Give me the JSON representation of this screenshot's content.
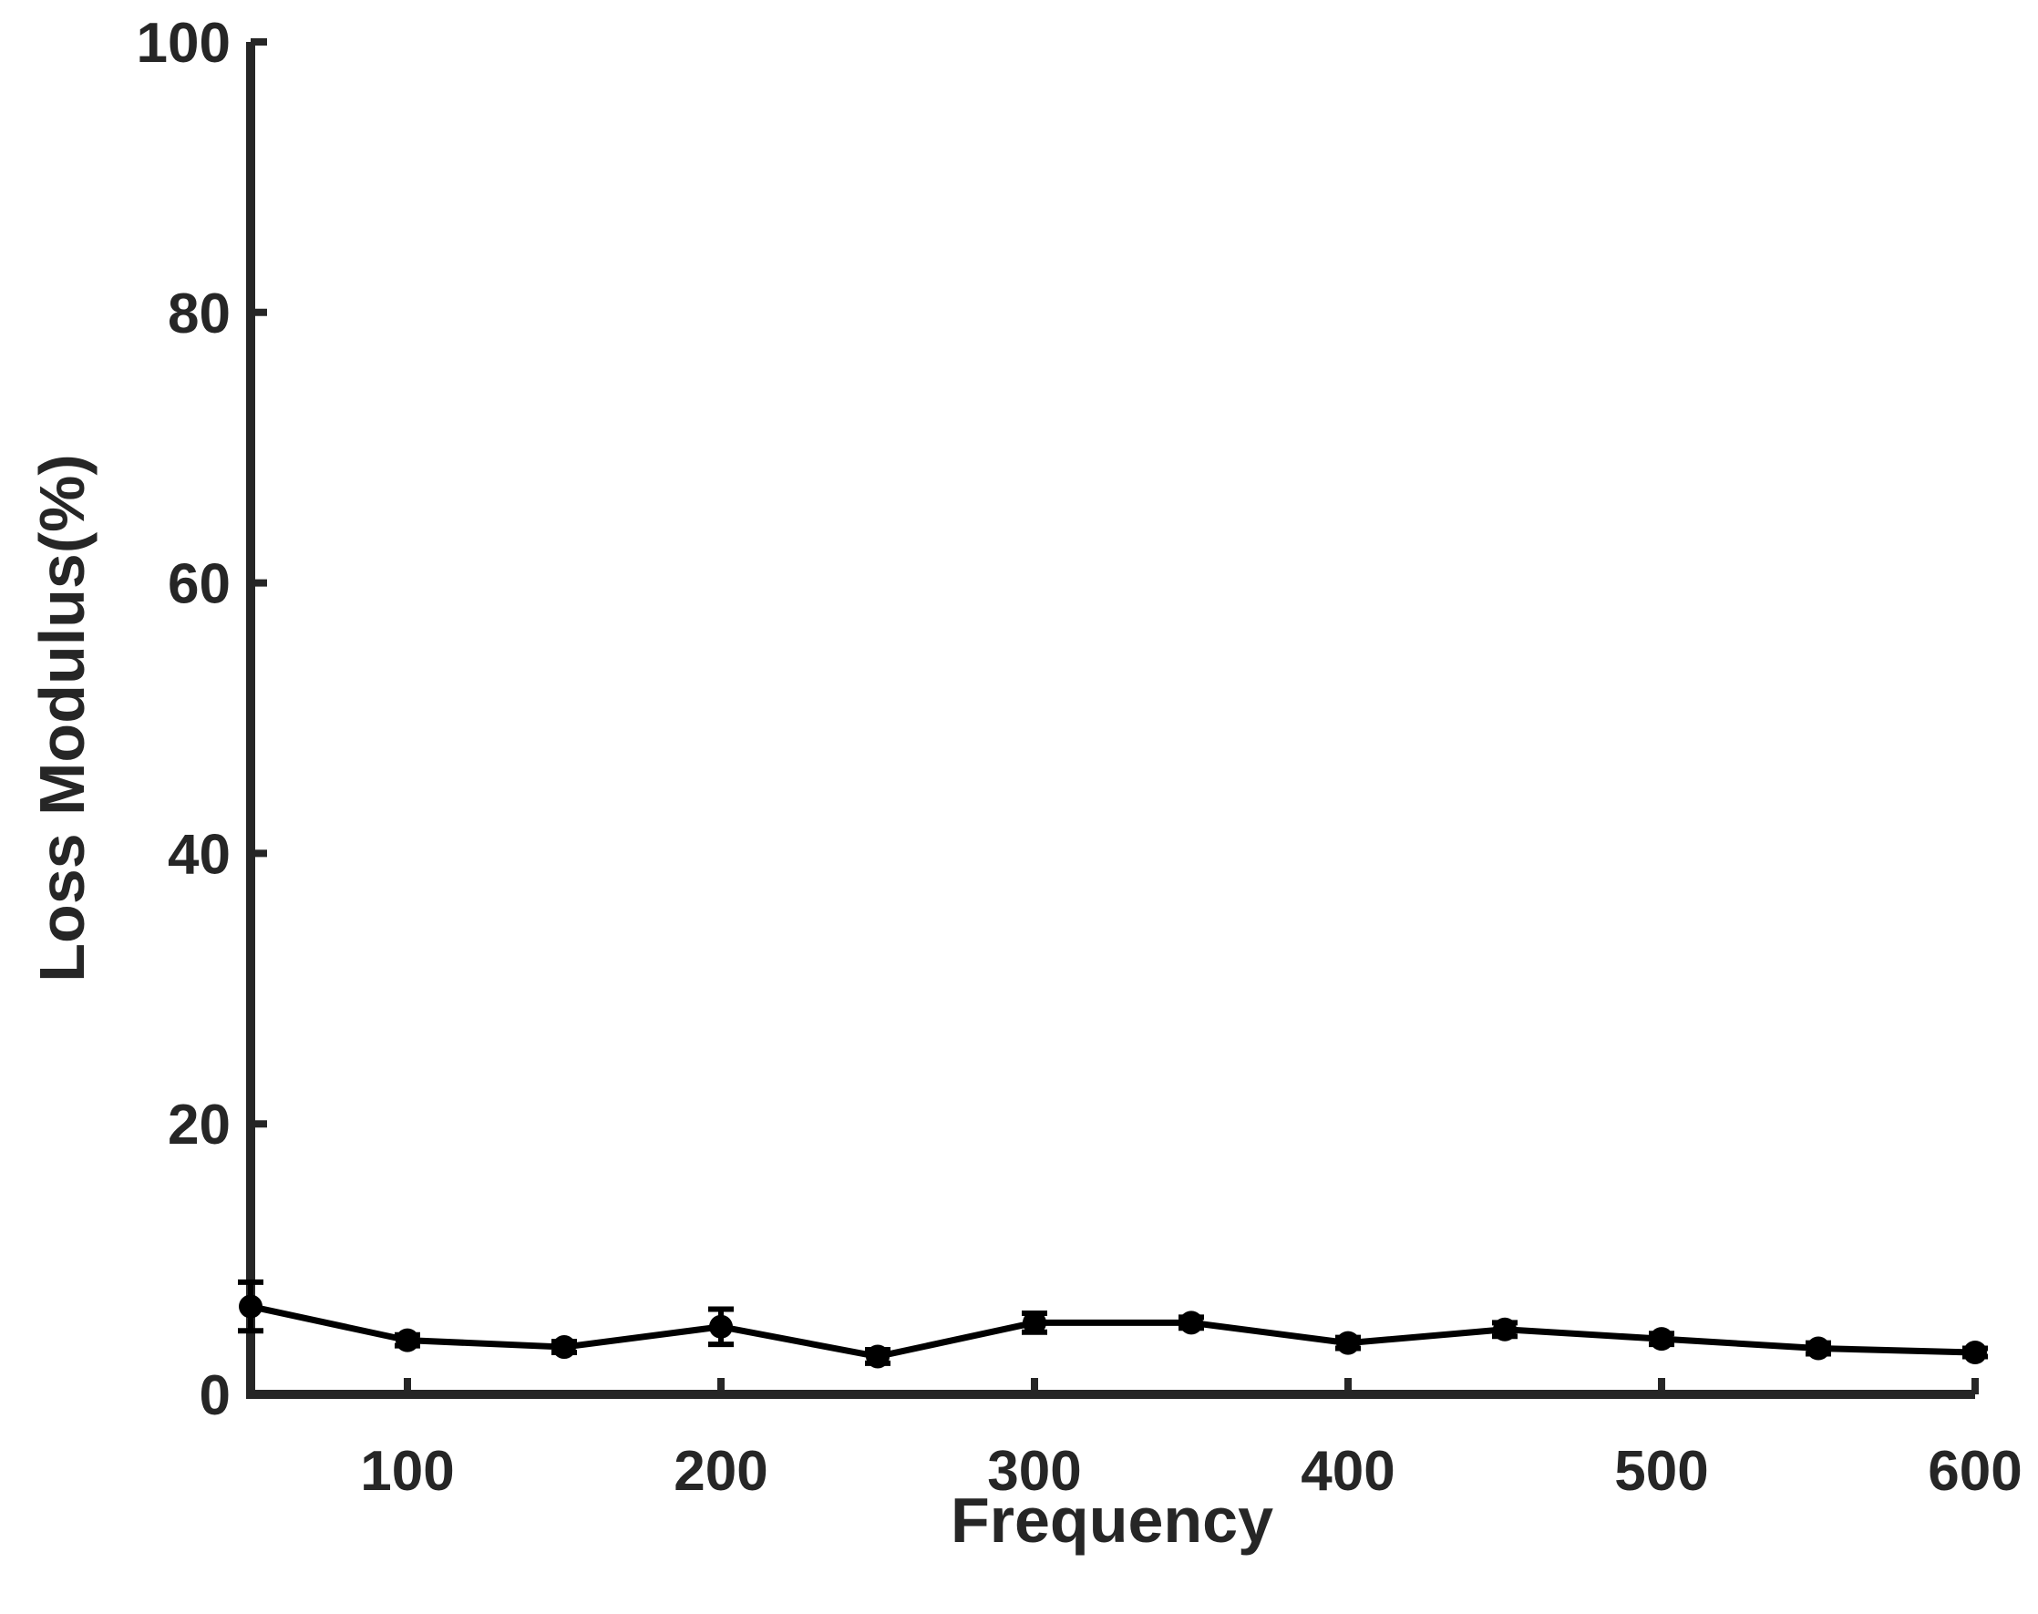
{
  "chart_data": {
    "type": "line",
    "title": "",
    "xlabel": "Frequency",
    "ylabel": "Loss Modulus(%)",
    "xlim": [
      50,
      600
    ],
    "ylim": [
      0,
      100
    ],
    "x_ticks": [
      100,
      200,
      300,
      400,
      500,
      600
    ],
    "y_ticks": [
      0,
      20,
      40,
      60,
      80,
      100
    ],
    "x_tick_labels": [
      "100",
      "200",
      "300",
      "400",
      "500",
      "600"
    ],
    "y_tick_labels": [
      "0",
      "20",
      "40",
      "60",
      "80",
      "100"
    ],
    "grid": false,
    "legend": "none",
    "series": [
      {
        "x": [
          50,
          100,
          150,
          200,
          250,
          300,
          350,
          400,
          450,
          500,
          550,
          600
        ],
        "values": [
          6.5,
          4.0,
          3.5,
          5.0,
          2.8,
          5.3,
          5.3,
          3.8,
          4.8,
          4.1,
          3.4,
          3.1
        ],
        "error": [
          1.8,
          0.4,
          0.4,
          1.3,
          0.5,
          0.7,
          0.4,
          0.4,
          0.5,
          0.4,
          0.4,
          0.3
        ],
        "color": "#000000",
        "marker": "circle"
      }
    ]
  }
}
